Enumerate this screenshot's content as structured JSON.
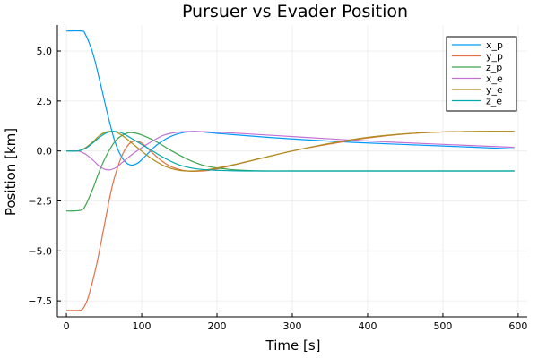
{
  "chart_data": {
    "type": "line",
    "title": "Pursuer vs Evader Position",
    "xlabel": "Time [s]",
    "ylabel": "Position [km]",
    "xlim": [
      -12,
      612
    ],
    "ylim": [
      -8.3,
      6.3
    ],
    "xticks": [
      0,
      100,
      200,
      300,
      400,
      500,
      600
    ],
    "xtick_labels": [
      "0",
      "100",
      "200",
      "300",
      "400",
      "500",
      "600"
    ],
    "yticks": [
      -7.5,
      -5.0,
      -2.5,
      0.0,
      2.5,
      5.0
    ],
    "ytick_labels": [
      "−7.5",
      "−5.0",
      "−2.5",
      "0.0",
      "2.5",
      "5.0"
    ],
    "grid": true,
    "legend_position": "top-right",
    "series": [
      {
        "name": "x_p",
        "color": "#009AFA",
        "x": [
          0,
          20,
          25,
          35,
          45,
          55,
          65,
          75,
          85,
          95,
          105,
          120,
          140,
          160,
          175,
          200,
          300,
          400,
          500,
          595
        ],
        "y": [
          6.0,
          6.0,
          5.85,
          4.9,
          3.4,
          1.8,
          0.4,
          -0.4,
          -0.7,
          -0.6,
          -0.25,
          0.3,
          0.75,
          0.95,
          0.97,
          0.88,
          0.6,
          0.4,
          0.25,
          0.1
        ]
      },
      {
        "name": "y_p",
        "color": "#E36F47",
        "x": [
          0,
          10,
          20,
          25,
          30,
          40,
          50,
          60,
          70,
          80,
          90,
          100,
          110,
          125,
          140,
          160,
          180,
          200,
          250,
          300,
          350,
          400,
          450,
          500,
          550,
          595
        ],
        "y": [
          -7.98,
          -7.98,
          -7.95,
          -7.7,
          -7.2,
          -5.7,
          -3.8,
          -1.9,
          -0.6,
          0.2,
          0.5,
          0.4,
          0.05,
          -0.45,
          -0.8,
          -1.0,
          -1.0,
          -0.9,
          -0.45,
          0.0,
          0.35,
          0.65,
          0.85,
          0.95,
          0.98,
          0.98
        ]
      },
      {
        "name": "z_p",
        "color": "#3EA44E",
        "x": [
          0,
          10,
          20,
          25,
          35,
          45,
          55,
          65,
          75,
          85,
          100,
          120,
          140,
          160,
          180,
          200,
          230,
          260,
          300,
          400,
          500,
          595
        ],
        "y": [
          -3.0,
          -3.0,
          -2.95,
          -2.75,
          -1.9,
          -0.9,
          -0.1,
          0.5,
          0.8,
          0.92,
          0.8,
          0.45,
          0.0,
          -0.4,
          -0.7,
          -0.85,
          -0.96,
          -1.0,
          -1.0,
          -1.0,
          -1.0,
          -1.0
        ]
      },
      {
        "name": "x_e",
        "color": "#C271D2",
        "x": [
          0,
          15,
          25,
          35,
          45,
          55,
          65,
          75,
          90,
          110,
          130,
          150,
          170,
          190,
          220,
          300,
          400,
          500,
          595
        ],
        "y": [
          0.0,
          0.0,
          -0.15,
          -0.45,
          -0.8,
          -0.95,
          -0.85,
          -0.55,
          -0.1,
          0.4,
          0.8,
          0.95,
          0.98,
          0.95,
          0.9,
          0.72,
          0.5,
          0.33,
          0.18
        ]
      },
      {
        "name": "y_e",
        "color": "#AC8E18",
        "x": [
          0,
          15,
          25,
          35,
          45,
          55,
          65,
          75,
          90,
          110,
          130,
          150,
          170,
          190,
          220,
          260,
          300,
          350,
          400,
          450,
          500,
          550,
          595
        ],
        "y": [
          0.0,
          0.0,
          0.15,
          0.45,
          0.8,
          0.97,
          0.95,
          0.75,
          0.3,
          -0.3,
          -0.75,
          -0.97,
          -1.0,
          -0.92,
          -0.7,
          -0.35,
          0.0,
          0.38,
          0.68,
          0.86,
          0.95,
          0.98,
          0.98
        ]
      },
      {
        "name": "z_e",
        "color": "#00A9AD",
        "x": [
          0,
          15,
          25,
          35,
          45,
          55,
          65,
          75,
          90,
          110,
          130,
          150,
          170,
          190,
          210,
          240,
          280,
          400,
          500,
          595
        ],
        "y": [
          0.0,
          0.0,
          0.12,
          0.4,
          0.72,
          0.93,
          0.98,
          0.88,
          0.55,
          0.1,
          -0.35,
          -0.7,
          -0.88,
          -0.95,
          -0.98,
          -1.0,
          -1.0,
          -1.0,
          -1.0,
          -1.0
        ]
      }
    ]
  }
}
